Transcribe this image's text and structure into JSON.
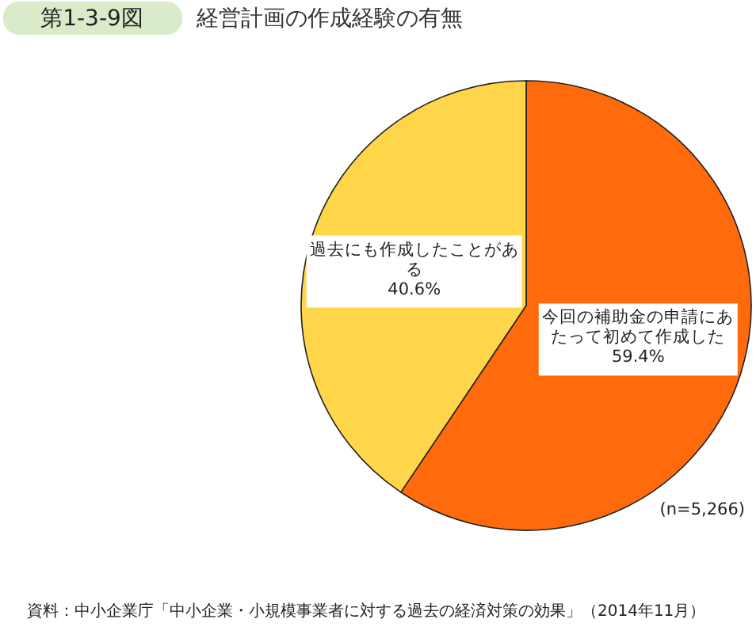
{
  "chart_data": {
    "type": "pie",
    "title": "経営計画の作成経験の有無",
    "categories": [
      "今回の補助金の申請にあたって初めて作成した",
      "過去にも作成したことがある"
    ],
    "values": [
      59.4,
      40.6
    ],
    "colors": [
      "#ff6a0d",
      "#ffd54a"
    ],
    "value_labels": [
      "59.4%",
      "40.6%"
    ],
    "annotations": [
      "第1-3-9図",
      "(n=5,266)",
      "資料：中小企業庁「中小企業・小規模事業者に対する過去の経済対策の効果」（2014年11月）"
    ]
  }
}
